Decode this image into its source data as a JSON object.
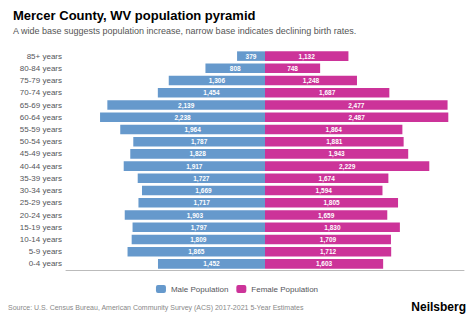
{
  "chart_data": {
    "type": "bar",
    "orientation": "horizontal",
    "title": "Mercer County, WV population pyramid",
    "subtitle": "A wide base suggests population increase, narrow base indicates declining birth rates.",
    "annotations": [
      "Source: U.S. Census Bureau, American Community Survey (ACS) 2017-2021 5-Year Estimates",
      "Neilsberg"
    ],
    "categories": [
      "0-4 years",
      "5-9 years",
      "10-14 years",
      "15-19 years",
      "20-24 years",
      "25-29 years",
      "30-34 years",
      "35-39 years",
      "40-44 years",
      "45-49 years",
      "50-54 years",
      "55-59 years",
      "60-64 years",
      "65-69 years",
      "70-74 years",
      "75-79 years",
      "80-84 years",
      "85+ years"
    ],
    "series": [
      {
        "name": "Male Population",
        "color": "#6699CC",
        "values": [
          1452,
          1865,
          1809,
          1797,
          1903,
          1717,
          1669,
          1727,
          1917,
          1828,
          1787,
          1964,
          2238,
          2139,
          1454,
          1306,
          808,
          379
        ],
        "value_labels": [
          "1,452",
          "1,865",
          "1,809",
          "1,797",
          "1,903",
          "1,717",
          "1,669",
          "1,727",
          "1,917",
          "1,828",
          "1,787",
          "1,964",
          "2,238",
          "2,139",
          "1,454",
          "1,306",
          "808",
          "379"
        ]
      },
      {
        "name": "Female Population",
        "color": "#CC3399",
        "values": [
          1603,
          1712,
          1709,
          1830,
          1659,
          1805,
          1594,
          1674,
          2229,
          1943,
          1881,
          1864,
          2487,
          2477,
          1687,
          1248,
          748,
          1132
        ],
        "value_labels": [
          "1,603",
          "1,712",
          "1,709",
          "1,830",
          "1,659",
          "1,805",
          "1,594",
          "1,674",
          "2,229",
          "1,943",
          "1,881",
          "1,864",
          "2,487",
          "2,477",
          "1,687",
          "1,248",
          "748",
          "1,132"
        ]
      }
    ],
    "xlim": [
      0,
      2700
    ],
    "data_labels": true,
    "tick_labels": "y",
    "grid": false,
    "legend": "bottom"
  }
}
